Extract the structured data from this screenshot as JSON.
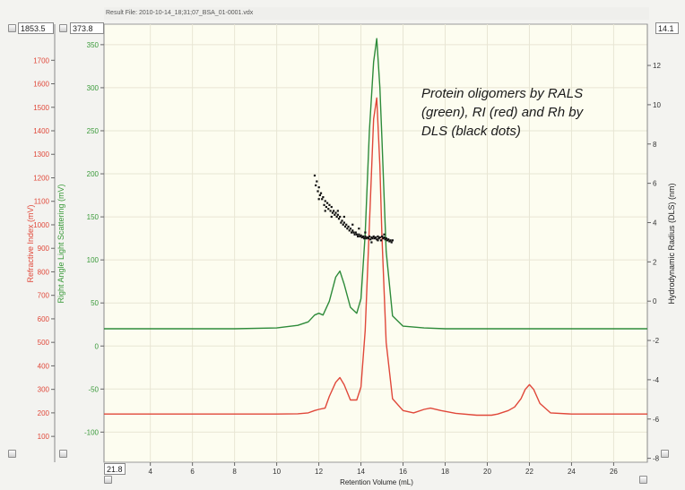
{
  "header": {
    "result_file": "Result File: 2010-10-14_18;31;07_BSA_01-0001.vdx"
  },
  "range_boxes": {
    "ri_max": "1853.5",
    "rals_max": "373.8",
    "rh_max": "14.1",
    "x_min": "21.8"
  },
  "annotation": {
    "line1": "Protein oligomers by RALS",
    "line2": "(green), RI (red) and Rh by",
    "line3": "DLS (black dots)"
  },
  "colors": {
    "rals": "#2e8b3a",
    "ri": "#e0483a",
    "dls": "#111111",
    "ri_axis": "#e0483a",
    "rals_axis": "#3a9a3a",
    "plot_bg": "#fdfdf0",
    "grid": "#e8e6d4"
  },
  "chart_data": {
    "type": "line",
    "xlabel": "Retention Volume (mL)",
    "x_ticks": [
      "4",
      "6",
      "8",
      "10",
      "12",
      "14",
      "16",
      "18",
      "20",
      "22",
      "24",
      "26"
    ],
    "xlim": [
      1.8,
      27.6
    ],
    "axes": {
      "ri": {
        "label": "Refractive Index (mV)",
        "ticks": [
          "100",
          "200",
          "300",
          "400",
          "500",
          "600",
          "700",
          "800",
          "900",
          "1000",
          "1100",
          "1200",
          "1300",
          "1400",
          "1500",
          "1600",
          "1700"
        ],
        "ylim": [
          -10,
          1853.5
        ]
      },
      "rals": {
        "label": "Right Angle Light Scattering (mV)",
        "ticks": [
          "-100",
          "-50",
          "0",
          "50",
          "100",
          "150",
          "200",
          "250",
          "300",
          "350"
        ],
        "ylim": [
          -135,
          373.8
        ]
      },
      "rh": {
        "label": "Hydrodynamic Radius (DLS) (nm)",
        "ticks": [
          "-8",
          "-6",
          "-4",
          "-2",
          "0",
          "2",
          "4",
          "6",
          "8",
          "10",
          "12"
        ],
        "ylim": [
          -8.2,
          14.1
        ]
      }
    },
    "series": [
      {
        "axis": "rals",
        "x": [
          1.8,
          8,
          10,
          11,
          11.5,
          11.8,
          12.0,
          12.2,
          12.5,
          12.8,
          13.0,
          13.2,
          13.5,
          13.8,
          14.0,
          14.2,
          14.4,
          14.6,
          14.75,
          14.9,
          15.0,
          15.2,
          15.5,
          16,
          17,
          18,
          20,
          22,
          24,
          27.6
        ],
        "y": [
          20,
          20,
          21,
          24,
          28,
          36,
          38,
          36,
          52,
          80,
          87,
          72,
          45,
          38,
          55,
          130,
          250,
          330,
          357,
          300,
          240,
          110,
          35,
          23,
          21,
          20,
          20,
          20,
          20,
          20
        ]
      },
      {
        "axis": "ri",
        "x": [
          1.8,
          8,
          10,
          11,
          11.5,
          11.8,
          12.0,
          12.3,
          12.5,
          12.8,
          13.0,
          13.2,
          13.5,
          13.8,
          14.0,
          14.2,
          14.4,
          14.6,
          14.75,
          14.9,
          15.0,
          15.2,
          15.5,
          16,
          16.5,
          17.0,
          17.3,
          17.8,
          18.5,
          19.5,
          20.2,
          20.5,
          21.0,
          21.3,
          21.6,
          21.8,
          22.0,
          22.2,
          22.5,
          23.0,
          24,
          26,
          27.6
        ],
        "y": [
          195,
          195,
          195,
          196,
          200,
          210,
          215,
          220,
          270,
          330,
          350,
          320,
          255,
          255,
          310,
          550,
          1000,
          1450,
          1540,
          1250,
          950,
          500,
          260,
          210,
          200,
          215,
          220,
          210,
          198,
          190,
          190,
          195,
          210,
          225,
          260,
          300,
          320,
          300,
          240,
          200,
          195,
          195,
          195
        ]
      }
    ],
    "dls_points": [
      [
        11.8,
        6.4
      ],
      [
        11.85,
        5.9
      ],
      [
        11.9,
        6.1
      ],
      [
        11.95,
        5.6
      ],
      [
        12.0,
        5.8
      ],
      [
        12.05,
        5.4
      ],
      [
        12.1,
        5.5
      ],
      [
        12.15,
        5.2
      ],
      [
        12.2,
        5.3
      ],
      [
        12.25,
        4.9
      ],
      [
        12.3,
        5.1
      ],
      [
        12.35,
        4.8
      ],
      [
        12.4,
        5.0
      ],
      [
        12.45,
        4.7
      ],
      [
        12.5,
        4.9
      ],
      [
        12.55,
        4.6
      ],
      [
        12.6,
        4.8
      ],
      [
        12.65,
        4.5
      ],
      [
        12.7,
        4.6
      ],
      [
        12.75,
        4.4
      ],
      [
        12.8,
        4.5
      ],
      [
        12.85,
        4.3
      ],
      [
        12.9,
        4.4
      ],
      [
        12.95,
        4.2
      ],
      [
        13.0,
        4.3
      ],
      [
        13.05,
        4.0
      ],
      [
        13.1,
        4.1
      ],
      [
        13.15,
        3.9
      ],
      [
        13.2,
        4.0
      ],
      [
        13.25,
        3.8
      ],
      [
        13.3,
        3.9
      ],
      [
        13.35,
        3.7
      ],
      [
        13.4,
        3.8
      ],
      [
        13.45,
        3.6
      ],
      [
        13.5,
        3.7
      ],
      [
        13.55,
        3.5
      ],
      [
        13.6,
        3.6
      ],
      [
        13.65,
        3.5
      ],
      [
        13.7,
        3.4
      ],
      [
        13.75,
        3.5
      ],
      [
        13.8,
        3.4
      ],
      [
        13.85,
        3.3
      ],
      [
        13.9,
        3.4
      ],
      [
        13.95,
        3.3
      ],
      [
        14.0,
        3.35
      ],
      [
        14.05,
        3.25
      ],
      [
        14.1,
        3.3
      ],
      [
        14.15,
        3.2
      ],
      [
        14.2,
        3.3
      ],
      [
        14.25,
        3.2
      ],
      [
        14.3,
        3.25
      ],
      [
        14.35,
        3.2
      ],
      [
        14.4,
        3.3
      ],
      [
        14.45,
        3.15
      ],
      [
        14.5,
        3.25
      ],
      [
        14.55,
        3.2
      ],
      [
        14.6,
        3.3
      ],
      [
        14.65,
        3.2
      ],
      [
        14.7,
        3.25
      ],
      [
        14.75,
        3.15
      ],
      [
        14.8,
        3.3
      ],
      [
        14.85,
        3.2
      ],
      [
        14.9,
        3.25
      ],
      [
        14.95,
        3.1
      ],
      [
        15.0,
        3.3
      ],
      [
        15.05,
        3.2
      ],
      [
        15.1,
        3.25
      ],
      [
        15.15,
        3.15
      ],
      [
        15.2,
        3.2
      ],
      [
        15.25,
        3.1
      ],
      [
        15.3,
        3.15
      ],
      [
        15.35,
        3.05
      ],
      [
        15.4,
        3.1
      ],
      [
        15.45,
        3.0
      ],
      [
        15.5,
        3.1
      ],
      [
        12.0,
        5.2
      ],
      [
        12.3,
        4.6
      ],
      [
        12.6,
        4.3
      ],
      [
        12.9,
        4.6
      ],
      [
        13.2,
        4.3
      ],
      [
        13.6,
        3.9
      ],
      [
        13.9,
        3.7
      ],
      [
        14.2,
        3.5
      ],
      [
        14.5,
        3.0
      ],
      [
        14.8,
        3.1
      ],
      [
        15.1,
        3.4
      ]
    ]
  }
}
